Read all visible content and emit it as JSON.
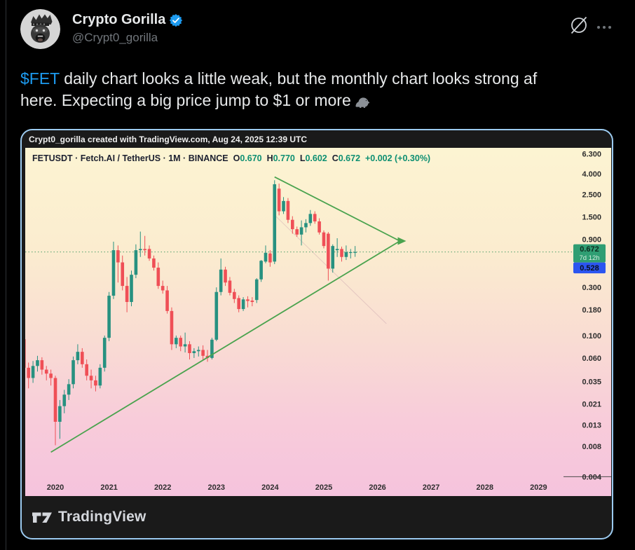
{
  "post": {
    "author": "Crypto Gorilla",
    "handle": "@Crypt0_gorilla",
    "body": {
      "cashtag": "$FET",
      "line1_rest": " daily chart looks a little weak, but the monthly chart looks strong af",
      "line2": "here. Expecting a big price jump to $1 or more"
    },
    "icons": {
      "grok": "slashed-circle-grok-logo",
      "more": "three-dots-ellipsis",
      "verified": "blue-checkmark-seal",
      "gorilla_emoji": "gorilla",
      "avatar_art": "gorilla-wearing-crown-illustration"
    }
  },
  "card": {
    "attribution": "Crypt0_gorilla created with TradingView.com, Aug 24, 2025 12:39 UTC",
    "footer_brand": "TradingView"
  },
  "chart_data": {
    "type": "candlestick",
    "title": "FETUSDT monthly candlestick chart with symmetrical triangle pattern",
    "legend": {
      "symbol": "FETUSDT · Fetch.AI / TetherUS · 1M · BINANCE",
      "o_label": "O",
      "o_value": "0.670",
      "h_label": "H",
      "h_value": "0.770",
      "l_label": "L",
      "l_value": "0.602",
      "c_label": "C",
      "c_value": "0.672",
      "change": "+0.002 (+0.30%)"
    },
    "price_axis_labels": [
      "6.300",
      "4.000",
      "2.500",
      "1.500",
      "0.900",
      "0.300",
      "0.180",
      "0.100",
      "0.060",
      "0.035",
      "0.021",
      "0.013",
      "0.008",
      "0.004"
    ],
    "x_axis_labels": [
      "2020",
      "2021",
      "2022",
      "2023",
      "2024",
      "2025",
      "2026",
      "2027",
      "2028",
      "2029"
    ],
    "current_price_label": {
      "price": "0.672",
      "countdown": "7d 12h"
    },
    "low_price_label": "0.528",
    "dotted_price_line": 0.672,
    "axis_bottom_value": 0.004,
    "scale": "logarithmic",
    "candles_format": [
      "month",
      "open",
      "high",
      "low",
      "close"
    ],
    "candles": [
      [
        "2019-06",
        0.092,
        0.1,
        0.042,
        0.048
      ],
      [
        "2019-07",
        0.048,
        0.054,
        0.03,
        0.038
      ],
      [
        "2019-08",
        0.038,
        0.056,
        0.034,
        0.05
      ],
      [
        "2019-09",
        0.05,
        0.063,
        0.044,
        0.057
      ],
      [
        "2019-10",
        0.057,
        0.061,
        0.041,
        0.046
      ],
      [
        "2019-11",
        0.046,
        0.05,
        0.036,
        0.042
      ],
      [
        "2019-12",
        0.042,
        0.046,
        0.032,
        0.038
      ],
      [
        "2020-01",
        0.038,
        0.04,
        0.0082,
        0.014
      ],
      [
        "2020-02",
        0.014,
        0.023,
        0.0095,
        0.02
      ],
      [
        "2020-03",
        0.02,
        0.029,
        0.017,
        0.026
      ],
      [
        "2020-04",
        0.026,
        0.037,
        0.023,
        0.033
      ],
      [
        "2020-05",
        0.033,
        0.062,
        0.03,
        0.057
      ],
      [
        "2020-06",
        0.057,
        0.082,
        0.052,
        0.069
      ],
      [
        "2020-07",
        0.069,
        0.075,
        0.048,
        0.052
      ],
      [
        "2020-08",
        0.052,
        0.058,
        0.036,
        0.04
      ],
      [
        "2020-09",
        0.04,
        0.046,
        0.03,
        0.036
      ],
      [
        "2020-10",
        0.036,
        0.04,
        0.028,
        0.032
      ],
      [
        "2020-11",
        0.032,
        0.052,
        0.03,
        0.048
      ],
      [
        "2020-12",
        0.048,
        0.1,
        0.044,
        0.095
      ],
      [
        "2021-01",
        0.095,
        0.27,
        0.088,
        0.248
      ],
      [
        "2021-02",
        0.248,
        0.85,
        0.23,
        0.7
      ],
      [
        "2021-03",
        0.7,
        0.78,
        0.335,
        0.53
      ],
      [
        "2021-04",
        0.53,
        0.62,
        0.28,
        0.31
      ],
      [
        "2021-05",
        0.31,
        0.38,
        0.17,
        0.215
      ],
      [
        "2021-06",
        0.215,
        0.44,
        0.195,
        0.4
      ],
      [
        "2021-07",
        0.4,
        0.8,
        0.37,
        0.7
      ],
      [
        "2021-08",
        0.7,
        1.07,
        0.6,
        0.72
      ],
      [
        "2021-09",
        0.72,
        0.97,
        0.62,
        0.7
      ],
      [
        "2021-10",
        0.72,
        0.78,
        0.55,
        0.58
      ],
      [
        "2021-11",
        0.58,
        0.62,
        0.44,
        0.47
      ],
      [
        "2021-12",
        0.47,
        0.53,
        0.29,
        0.31
      ],
      [
        "2022-01",
        0.31,
        0.35,
        0.26,
        0.28
      ],
      [
        "2022-02",
        0.28,
        0.31,
        0.165,
        0.175
      ],
      [
        "2022-03",
        0.175,
        0.19,
        0.072,
        0.082
      ],
      [
        "2022-04",
        0.082,
        0.1,
        0.075,
        0.095
      ],
      [
        "2022-05",
        0.095,
        0.1,
        0.07,
        0.078
      ],
      [
        "2022-06",
        0.078,
        0.107,
        0.068,
        0.082
      ],
      [
        "2022-07",
        0.082,
        0.088,
        0.058,
        0.067
      ],
      [
        "2022-08",
        0.067,
        0.075,
        0.06,
        0.07
      ],
      [
        "2022-09",
        0.07,
        0.078,
        0.062,
        0.072
      ],
      [
        "2022-10",
        0.072,
        0.08,
        0.058,
        0.063
      ],
      [
        "2022-11",
        0.063,
        0.072,
        0.055,
        0.06
      ],
      [
        "2022-12",
        0.06,
        0.095,
        0.058,
        0.091
      ],
      [
        "2023-01",
        0.091,
        0.3,
        0.088,
        0.27
      ],
      [
        "2023-02",
        0.27,
        0.58,
        0.25,
        0.45
      ],
      [
        "2023-03",
        0.45,
        0.48,
        0.31,
        0.335
      ],
      [
        "2023-04",
        0.35,
        0.38,
        0.25,
        0.265
      ],
      [
        "2023-05",
        0.27,
        0.29,
        0.21,
        0.23
      ],
      [
        "2023-06",
        0.235,
        0.25,
        0.17,
        0.183
      ],
      [
        "2023-07",
        0.183,
        0.24,
        0.175,
        0.228
      ],
      [
        "2023-08",
        0.228,
        0.245,
        0.19,
        0.22
      ],
      [
        "2023-09",
        0.222,
        0.24,
        0.195,
        0.215
      ],
      [
        "2023-10",
        0.225,
        0.37,
        0.21,
        0.36
      ],
      [
        "2023-11",
        0.36,
        0.56,
        0.34,
        0.55
      ],
      [
        "2023-12",
        0.54,
        0.78,
        0.52,
        0.66
      ],
      [
        "2024-01",
        0.65,
        0.7,
        0.48,
        0.53
      ],
      [
        "2024-02",
        0.54,
        3.45,
        0.51,
        3.15
      ],
      [
        "2024-03",
        2.85,
        3.2,
        1.55,
        1.7
      ],
      [
        "2024-04",
        1.7,
        2.35,
        1.6,
        2.15
      ],
      [
        "2024-05",
        2.15,
        2.3,
        1.3,
        1.4
      ],
      [
        "2024-06",
        1.4,
        1.52,
        1.02,
        1.13
      ],
      [
        "2024-07",
        1.13,
        1.2,
        0.95,
        1.0
      ],
      [
        "2024-08",
        1.0,
        1.38,
        0.78,
        1.18
      ],
      [
        "2024-09",
        1.18,
        1.42,
        1.05,
        1.3
      ],
      [
        "2024-10",
        1.3,
        1.75,
        1.22,
        1.6
      ],
      [
        "2024-11",
        1.6,
        1.7,
        1.28,
        1.35
      ],
      [
        "2024-12",
        1.35,
        1.45,
        1.0,
        1.05
      ],
      [
        "2025-01",
        1.05,
        1.1,
        0.73,
        0.77
      ],
      [
        "2025-02",
        1.02,
        1.06,
        0.35,
        0.46
      ],
      [
        "2025-03",
        0.46,
        0.8,
        0.42,
        0.77
      ],
      [
        "2025-04",
        0.7,
        0.92,
        0.6,
        0.72
      ],
      [
        "2025-05",
        0.72,
        0.76,
        0.54,
        0.6
      ],
      [
        "2025-06",
        0.6,
        0.78,
        0.56,
        0.67
      ],
      [
        "2025-07",
        0.67,
        0.72,
        0.58,
        0.67
      ],
      [
        "2025-08",
        0.67,
        0.77,
        0.602,
        0.672
      ]
    ],
    "trendlines": [
      {
        "name": "ascending-support",
        "t1": "2019-12",
        "p1": 0.007,
        "t2": "2026-06",
        "p2": 0.863,
        "arrow_end": true,
        "faint": false
      },
      {
        "name": "descending-resistance",
        "t1": "2024-02",
        "p1": 3.72,
        "t2": "2026-06",
        "p2": 0.863,
        "arrow_end": false,
        "faint": false
      },
      {
        "name": "inner-faint-line",
        "t1": "2024-02",
        "p1": 1.56,
        "t2": "2026-03",
        "p2": 0.131,
        "arrow_end": false,
        "faint": true
      }
    ],
    "colors": {
      "up": "#279180",
      "down": "#ef4f56",
      "trendline": "#4aa34e",
      "dotted": "#4f9e6b",
      "axis_text": "#2d2d2d",
      "badge_green": "#2f9e73",
      "badge_green_text": "#0c2b1e",
      "badge_countdown_text": "#d4ecdd",
      "badge_blue": "#2b55f0",
      "badge_blue_text": "#0a0f1e",
      "legend_value_green": "#0d8f72",
      "accent_blue": "#1d9bf0",
      "card_border": "#9ccbf0"
    }
  }
}
